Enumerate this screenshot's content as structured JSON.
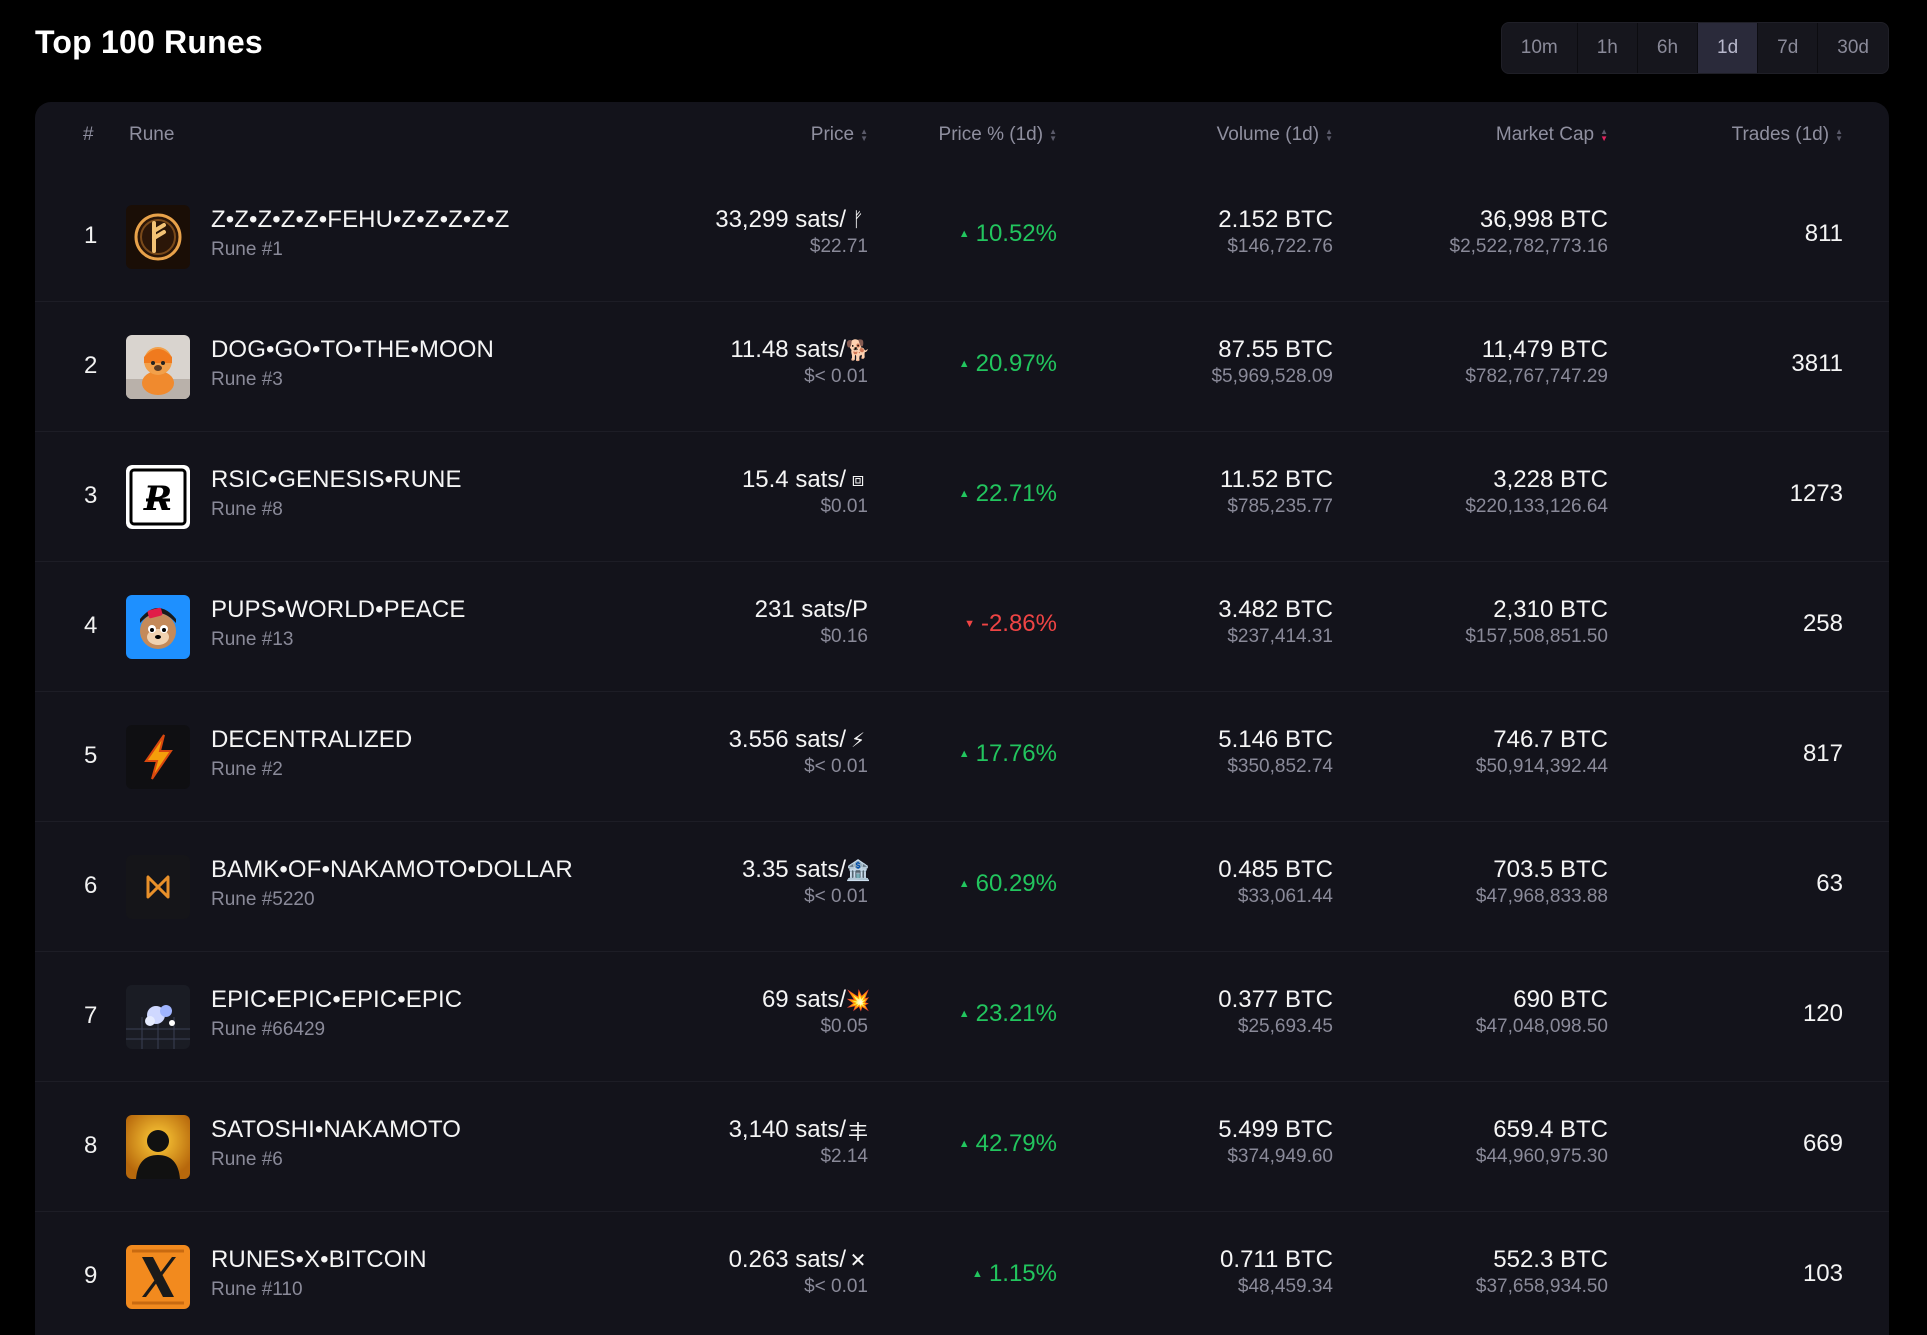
{
  "header": {
    "title": "Top 100 Runes",
    "timeframes": [
      "10m",
      "1h",
      "6h",
      "1d",
      "7d",
      "30d"
    ],
    "active_timeframe": "1d"
  },
  "table": {
    "columns": {
      "rank": "#",
      "rune": "Rune",
      "price": "Price",
      "price_pct": "Price % (1d)",
      "volume": "Volume (1d)",
      "market_cap": "Market Cap",
      "trades": "Trades (1d)"
    },
    "sorted_by": "Market Cap",
    "sort_direction": "desc",
    "rows": [
      {
        "rank": "1",
        "name": "Z•Z•Z•Z•Z•FEHU•Z•Z•Z•Z•Z",
        "rune_id": "Rune #1",
        "price": "33,299 sats/",
        "symbol": "ᚠ",
        "price_usd": "$22.71",
        "pct": "10.52%",
        "direction": "up",
        "volume": "2.152 BTC",
        "volume_usd": "$146,722.76",
        "market_cap": "36,998 BTC",
        "market_cap_usd": "$2,522,782,773.16",
        "trades": "811",
        "icon": "fehu-rune-icon"
      },
      {
        "rank": "2",
        "name": "DOG•GO•TO•THE•MOON",
        "rune_id": "Rune #3",
        "price": "11.48 sats/",
        "symbol": "🐕",
        "price_usd": "$< 0.01",
        "pct": "20.97%",
        "direction": "up",
        "volume": "87.55 BTC",
        "volume_usd": "$5,969,528.09",
        "market_cap": "11,479 BTC",
        "market_cap_usd": "$782,767,747.29",
        "trades": "3811",
        "icon": "dog-icon"
      },
      {
        "rank": "3",
        "name": "RSIC•GENESIS•RUNE",
        "rune_id": "Rune #8",
        "price": "15.4 sats/",
        "symbol": "⧈",
        "price_usd": "$0.01",
        "pct": "22.71%",
        "direction": "up",
        "volume": "11.52 BTC",
        "volume_usd": "$785,235.77",
        "market_cap": "3,228 BTC",
        "market_cap_usd": "$220,133,126.64",
        "trades": "1273",
        "icon": "rsic-logo-icon"
      },
      {
        "rank": "4",
        "name": "PUPS•WORLD•PEACE",
        "rune_id": "Rune #13",
        "price": "231 sats/P",
        "symbol": "",
        "price_usd": "$0.16",
        "pct": "-2.86%",
        "direction": "down",
        "volume": "3.482 BTC",
        "volume_usd": "$237,414.31",
        "market_cap": "2,310 BTC",
        "market_cap_usd": "$157,508,851.50",
        "trades": "258",
        "icon": "pups-icon"
      },
      {
        "rank": "5",
        "name": "DECENTRALIZED",
        "rune_id": "Rune #2",
        "price": "3.556 sats/",
        "symbol": "⚡",
        "price_usd": "$< 0.01",
        "pct": "17.76%",
        "direction": "up",
        "volume": "5.146 BTC",
        "volume_usd": "$350,852.74",
        "market_cap": "746.7 BTC",
        "market_cap_usd": "$50,914,392.44",
        "trades": "817",
        "icon": "lightning-icon"
      },
      {
        "rank": "6",
        "name": "BAMK•OF•NAKAMOTO•DOLLAR",
        "rune_id": "Rune #5220",
        "price": "3.35 sats/",
        "symbol": "🏦",
        "price_usd": "$< 0.01",
        "pct": "60.29%",
        "direction": "up",
        "volume": "0.485 BTC",
        "volume_usd": "$33,061.44",
        "market_cap": "703.5 BTC",
        "market_cap_usd": "$47,968,833.88",
        "trades": "63",
        "icon": "bamk-logo-icon"
      },
      {
        "rank": "7",
        "name": "EPIC•EPIC•EPIC•EPIC",
        "rune_id": "Rune #66429",
        "price": "69 sats/",
        "symbol": "💥",
        "price_usd": "$0.05",
        "pct": "23.21%",
        "direction": "up",
        "volume": "0.377 BTC",
        "volume_usd": "$25,693.45",
        "market_cap": "690 BTC",
        "market_cap_usd": "$47,048,098.50",
        "trades": "120",
        "icon": "epic-icon"
      },
      {
        "rank": "8",
        "name": "SATOSHI•NAKAMOTO",
        "rune_id": "Rune #6",
        "price": "3,140 sats/",
        "symbol": "丰",
        "price_usd": "$2.14",
        "pct": "42.79%",
        "direction": "up",
        "volume": "5.499 BTC",
        "volume_usd": "$374,949.60",
        "market_cap": "659.4 BTC",
        "market_cap_usd": "$44,960,975.30",
        "trades": "669",
        "icon": "satoshi-silhouette-icon"
      },
      {
        "rank": "9",
        "name": "RUNES•X•BITCOIN",
        "rune_id": "Rune #110",
        "price": "0.263 sats/",
        "symbol": "✕",
        "price_usd": "$< 0.01",
        "pct": "1.15%",
        "direction": "up",
        "volume": "0.711 BTC",
        "volume_usd": "$48,459.34",
        "market_cap": "552.3 BTC",
        "market_cap_usd": "$37,658,934.50",
        "trades": "103",
        "icon": "x-logo-icon"
      }
    ]
  },
  "colors": {
    "up": "#22c55e",
    "down": "#ef4444",
    "sort_active": "#e0245e"
  }
}
